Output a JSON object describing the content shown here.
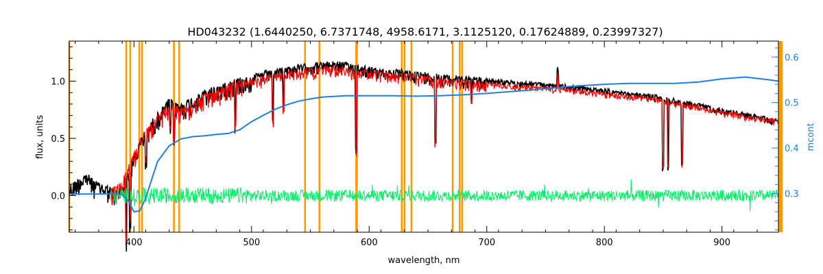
{
  "chart_data": {
    "type": "line",
    "title": "HD043232    (1.6440250, 6.7371748, 4958.6171, 3.1125120, 0.17624889, 0.23997327)",
    "xlabel": "wavelength, nm",
    "ylabel": "flux, units",
    "y2label": "mcont",
    "xlim": [
      345,
      948
    ],
    "ylim": [
      -0.32,
      1.35
    ],
    "y2lim": [
      0.215,
      0.635
    ],
    "x_ticks": [
      400,
      500,
      600,
      700,
      800,
      900
    ],
    "y_ticks": [
      0.0,
      0.5,
      1.0
    ],
    "y2_ticks": [
      0.3,
      0.4,
      0.5,
      0.6
    ],
    "grid": false,
    "colors": {
      "observed": "#000000",
      "model": "#ff0000",
      "residual": "#00ee66",
      "continuum": "#1f7fe0",
      "marker_lines": "#ff9900",
      "right_axis": "#1f7fe0"
    },
    "marker_lines": [
      345,
      393.4,
      396.8,
      404.5,
      406.9,
      434.0,
      438.4,
      545.5,
      557.7,
      588.99,
      589.59,
      627.7,
      630.0,
      635.9,
      671.0,
      677.0,
      679.0
    ],
    "series": [
      {
        "key": "observed",
        "axis": "left",
        "x": [
          345,
          352,
          360,
          367,
          375,
          380,
          385,
          390,
          395,
          400,
          405,
          410,
          415,
          420,
          425,
          430,
          435,
          440,
          450,
          460,
          470,
          480,
          490,
          500,
          510,
          520,
          530,
          540,
          550,
          560,
          570,
          580,
          590,
          600,
          610,
          620,
          630,
          640,
          650,
          660,
          670,
          680,
          690,
          700,
          710,
          720,
          730,
          740,
          750,
          760,
          770,
          780,
          790,
          800,
          810,
          820,
          830,
          840,
          850,
          860,
          870,
          880,
          890,
          900,
          910,
          920,
          930,
          940,
          948
        ],
        "y": [
          0.08,
          0.15,
          0.2,
          0.12,
          0.1,
          0.07,
          0.05,
          0.1,
          0.2,
          0.35,
          0.48,
          0.58,
          0.65,
          0.72,
          0.78,
          0.85,
          0.82,
          0.8,
          0.86,
          0.92,
          0.95,
          1.0,
          1.03,
          1.05,
          1.08,
          1.1,
          1.12,
          1.14,
          1.15,
          1.16,
          1.17,
          1.16,
          1.14,
          1.12,
          1.1,
          1.1,
          1.09,
          1.08,
          1.07,
          1.06,
          1.05,
          1.04,
          1.03,
          1.02,
          1.01,
          1.0,
          0.99,
          0.99,
          0.98,
          0.97,
          0.96,
          0.95,
          0.94,
          0.93,
          0.91,
          0.9,
          0.89,
          0.88,
          0.86,
          0.84,
          0.82,
          0.8,
          0.78,
          0.76,
          0.74,
          0.72,
          0.7,
          0.68,
          0.66
        ]
      },
      {
        "key": "model",
        "axis": "left",
        "x": [
          380,
          385,
          390,
          395,
          400,
          405,
          410,
          415,
          420,
          425,
          430,
          435,
          440,
          450,
          460,
          470,
          480,
          490,
          500,
          510,
          520,
          530,
          540,
          550,
          560,
          570,
          580,
          590,
          600,
          610,
          620,
          630,
          640,
          650,
          660,
          670,
          680,
          690,
          700,
          710,
          720,
          730,
          740,
          750,
          760,
          770,
          780,
          790,
          800,
          810,
          820,
          830,
          840,
          850,
          860,
          870,
          880,
          890,
          900,
          910,
          920,
          930,
          940,
          948
        ],
        "y": [
          0.06,
          0.08,
          0.14,
          0.25,
          0.38,
          0.5,
          0.58,
          0.64,
          0.7,
          0.75,
          0.8,
          0.78,
          0.77,
          0.82,
          0.88,
          0.92,
          0.97,
          1.0,
          1.02,
          1.04,
          1.06,
          1.08,
          1.1,
          1.11,
          1.12,
          1.13,
          1.12,
          1.1,
          1.09,
          1.08,
          1.07,
          1.06,
          1.05,
          1.04,
          1.03,
          1.02,
          1.01,
          1.0,
          0.99,
          0.98,
          0.97,
          0.96,
          0.96,
          0.95,
          0.94,
          0.93,
          0.92,
          0.91,
          0.9,
          0.89,
          0.88,
          0.87,
          0.85,
          0.84,
          0.82,
          0.8,
          0.78,
          0.76,
          0.74,
          0.72,
          0.7,
          0.68,
          0.67,
          0.66
        ]
      },
      {
        "key": "residual",
        "axis": "left",
        "x": [
          380,
          948
        ],
        "y": [
          0.0,
          0.0
        ],
        "noise": 0.05
      },
      {
        "key": "continuum",
        "axis": "right",
        "x": [
          345,
          360,
          375,
          380,
          385,
          390,
          395,
          400,
          405,
          410,
          415,
          420,
          430,
          440,
          450,
          460,
          470,
          480,
          490,
          500,
          510,
          520,
          530,
          540,
          550,
          560,
          580,
          600,
          620,
          640,
          660,
          680,
          700,
          720,
          740,
          760,
          780,
          800,
          820,
          840,
          860,
          880,
          900,
          920,
          940,
          948
        ],
        "y": [
          0.299,
          0.299,
          0.299,
          0.299,
          0.3,
          0.297,
          0.285,
          0.26,
          0.262,
          0.29,
          0.33,
          0.37,
          0.405,
          0.42,
          0.425,
          0.427,
          0.43,
          0.432,
          0.44,
          0.458,
          0.472,
          0.485,
          0.495,
          0.503,
          0.508,
          0.512,
          0.515,
          0.515,
          0.515,
          0.514,
          0.515,
          0.517,
          0.52,
          0.524,
          0.528,
          0.533,
          0.537,
          0.54,
          0.542,
          0.542,
          0.542,
          0.545,
          0.552,
          0.556,
          0.55,
          0.547
        ]
      }
    ]
  }
}
